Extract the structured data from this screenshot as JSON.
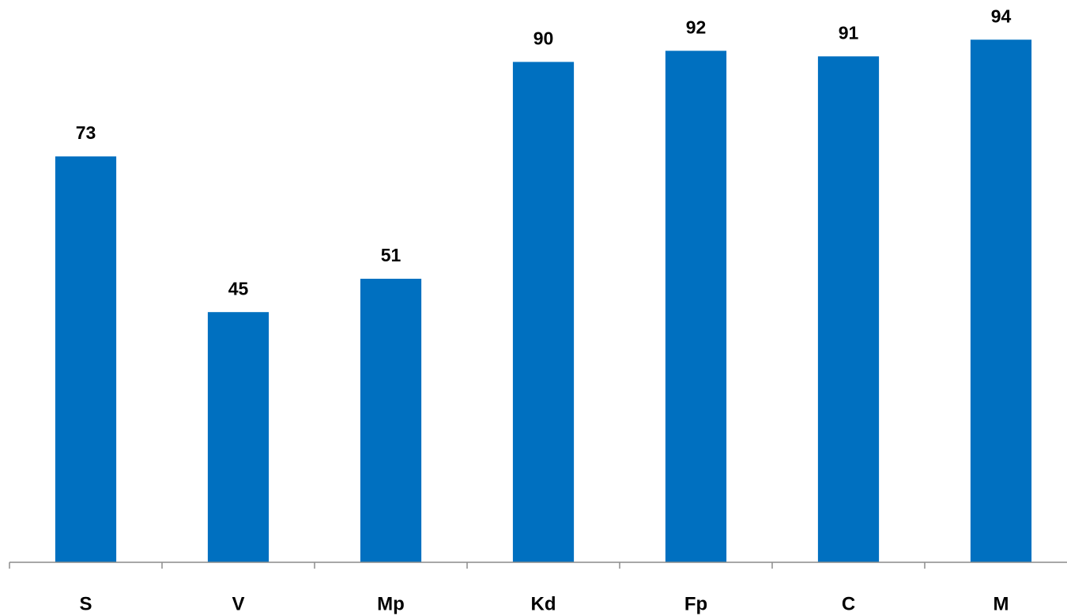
{
  "chart_data": {
    "type": "bar",
    "categories": [
      "S",
      "V",
      "Mp",
      "Kd",
      "Fp",
      "C",
      "M"
    ],
    "values": [
      73,
      45,
      51,
      90,
      92,
      91,
      94
    ],
    "color": "#0070c0",
    "ylim": [
      0,
      100
    ]
  }
}
